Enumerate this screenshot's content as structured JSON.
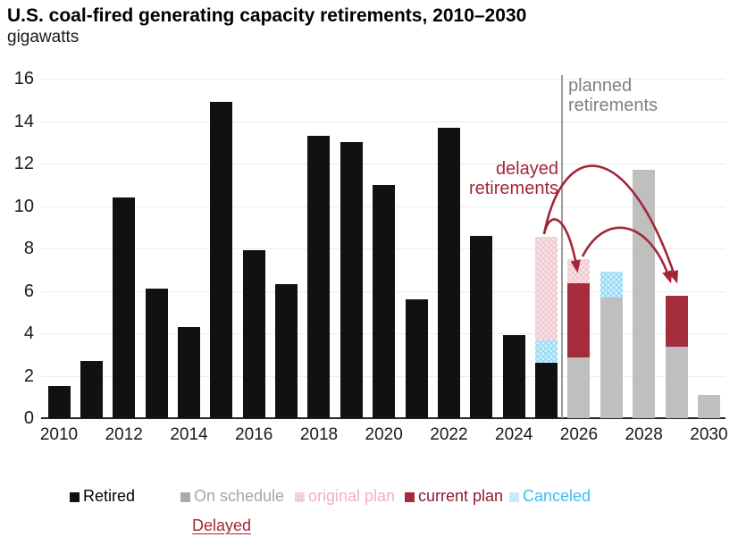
{
  "title": "U.S. coal-fired generating capacity retirements, 2010–2030",
  "subtitle": "gigawatts",
  "annotations": {
    "planned_line1": "planned",
    "planned_line2": "retirements",
    "delayed_line1": "delayed",
    "delayed_line2": "retirements"
  },
  "y_axis": {
    "ticks": [
      0,
      2,
      4,
      6,
      8,
      10,
      12,
      14,
      16
    ]
  },
  "x_axis": {
    "labels": [
      "2010",
      "2012",
      "2014",
      "2016",
      "2018",
      "2020",
      "2022",
      "2024",
      "2026",
      "2028",
      "2030"
    ]
  },
  "legend": {
    "items": [
      {
        "key": "retired",
        "label": "Retired"
      },
      {
        "key": "on_schedule",
        "label": "On schedule"
      },
      {
        "key": "original_plan",
        "label": "original plan"
      },
      {
        "key": "current_plan",
        "label": "current plan"
      },
      {
        "key": "canceled",
        "label": "Canceled"
      }
    ],
    "delayed": "Delayed"
  },
  "colors": {
    "retired": "#111111",
    "on_schedule": "#BFBFBF",
    "original_plan": "#F0CAD2",
    "original_plan_dot": "#F9E7EA",
    "current_plan": "#A52C3C",
    "canceled": "#97DAF7",
    "canceled_dot": "#DDF2FD",
    "arrow": "#A32638",
    "delayed_text": "#A32638",
    "planned_text": "#808080",
    "separator_line": "#9B9B9B",
    "gridline": "#ECECEC",
    "axis": "#262626"
  },
  "chart_data": {
    "type": "bar",
    "stacked": true,
    "title": "U.S. coal-fired generating capacity retirements, 2010–2030",
    "xlabel": "",
    "ylabel": "gigawatts",
    "ylim": [
      0,
      16
    ],
    "grid": "horizontal",
    "legend_position": "bottom",
    "categories": [
      2010,
      2011,
      2012,
      2013,
      2014,
      2015,
      2016,
      2017,
      2018,
      2019,
      2020,
      2021,
      2022,
      2023,
      2024,
      2025,
      2026,
      2027,
      2028,
      2029,
      2030
    ],
    "bars": [
      {
        "year": 2010,
        "segments": [
          {
            "series": "retired",
            "value": 1.5
          }
        ]
      },
      {
        "year": 2011,
        "segments": [
          {
            "series": "retired",
            "value": 2.7
          }
        ]
      },
      {
        "year": 2012,
        "segments": [
          {
            "series": "retired",
            "value": 10.4
          }
        ]
      },
      {
        "year": 2013,
        "segments": [
          {
            "series": "retired",
            "value": 6.1
          }
        ]
      },
      {
        "year": 2014,
        "segments": [
          {
            "series": "retired",
            "value": 4.3
          }
        ]
      },
      {
        "year": 2015,
        "segments": [
          {
            "series": "retired",
            "value": 14.9
          }
        ]
      },
      {
        "year": 2016,
        "segments": [
          {
            "series": "retired",
            "value": 7.9
          }
        ]
      },
      {
        "year": 2017,
        "segments": [
          {
            "series": "retired",
            "value": 6.3
          }
        ]
      },
      {
        "year": 2018,
        "segments": [
          {
            "series": "retired",
            "value": 13.3
          }
        ]
      },
      {
        "year": 2019,
        "segments": [
          {
            "series": "retired",
            "value": 13.0
          }
        ]
      },
      {
        "year": 2020,
        "segments": [
          {
            "series": "retired",
            "value": 11.0
          }
        ]
      },
      {
        "year": 2021,
        "segments": [
          {
            "series": "retired",
            "value": 5.6
          }
        ]
      },
      {
        "year": 2022,
        "segments": [
          {
            "series": "retired",
            "value": 13.7
          }
        ]
      },
      {
        "year": 2023,
        "segments": [
          {
            "series": "retired",
            "value": 8.6
          }
        ]
      },
      {
        "year": 2024,
        "segments": [
          {
            "series": "retired",
            "value": 3.9
          }
        ]
      },
      {
        "year": 2025,
        "segments": [
          {
            "series": "retired",
            "value": 2.6
          },
          {
            "series": "canceled",
            "value": 1.05
          },
          {
            "series": "original_plan",
            "value": 4.9
          }
        ]
      },
      {
        "year": 2026,
        "segments": [
          {
            "series": "on_schedule",
            "value": 2.85
          },
          {
            "series": "current_plan",
            "value": 3.5
          },
          {
            "series": "original_plan",
            "value": 1.15
          }
        ]
      },
      {
        "year": 2027,
        "segments": [
          {
            "series": "on_schedule",
            "value": 5.7
          },
          {
            "series": "canceled",
            "value": 1.2
          }
        ]
      },
      {
        "year": 2028,
        "segments": [
          {
            "series": "on_schedule",
            "value": 11.7
          }
        ]
      },
      {
        "year": 2029,
        "segments": [
          {
            "series": "on_schedule",
            "value": 3.35
          },
          {
            "series": "current_plan",
            "value": 2.4
          }
        ]
      },
      {
        "year": 2030,
        "segments": [
          {
            "series": "on_schedule",
            "value": 1.1
          }
        ]
      }
    ]
  }
}
